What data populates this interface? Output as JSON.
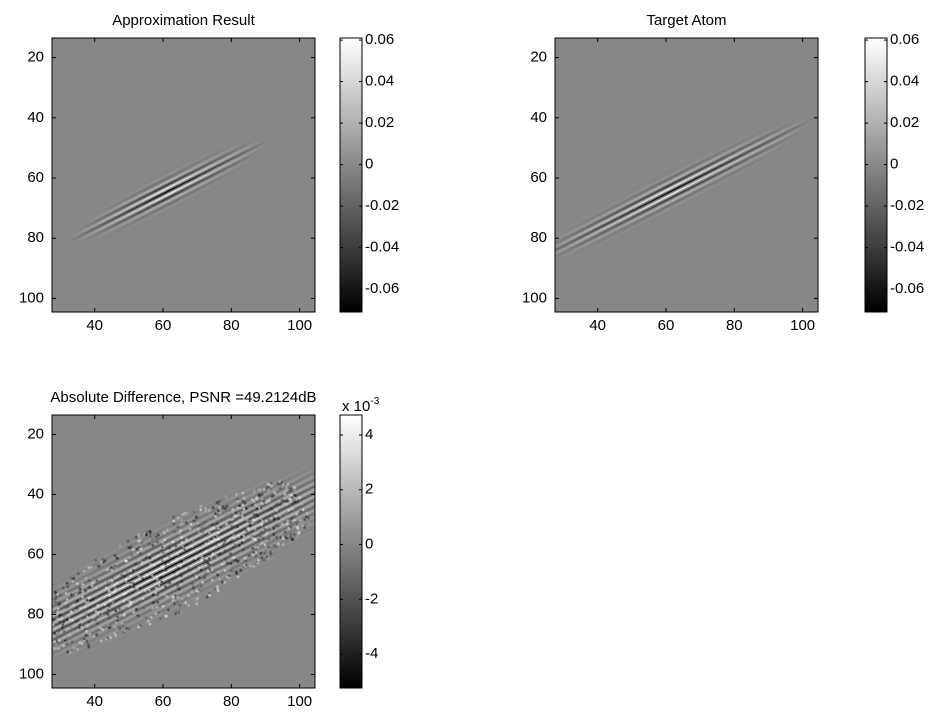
{
  "chart_data": [
    {
      "type": "image",
      "title": "Approximation Result",
      "colormap": "gray",
      "xlim": [
        27.5,
        104.5
      ],
      "ylim": [
        104.5,
        13.5
      ],
      "xticks": [
        40,
        60,
        80,
        100
      ],
      "yticks": [
        20,
        40,
        60,
        80,
        100
      ],
      "clim": [
        -0.071,
        0.061
      ],
      "cticks": [
        -0.06,
        -0.04,
        -0.02,
        0,
        0.02,
        0.04,
        0.06
      ]
    },
    {
      "type": "image",
      "title": "Target Atom",
      "colormap": "gray",
      "xlim": [
        27.5,
        104.5
      ],
      "ylim": [
        104.5,
        13.5
      ],
      "xticks": [
        40,
        60,
        80,
        100
      ],
      "yticks": [
        20,
        40,
        60,
        80,
        100
      ],
      "clim": [
        -0.071,
        0.061
      ],
      "cticks": [
        -0.06,
        -0.04,
        -0.02,
        0,
        0.02,
        0.04,
        0.06
      ]
    },
    {
      "type": "image",
      "title": "Absolute Difference, PSNR =49.2124dB",
      "colormap": "gray",
      "xlim": [
        27.5,
        104.5
      ],
      "ylim": [
        104.5,
        13.5
      ],
      "xticks": [
        40,
        60,
        80,
        100
      ],
      "yticks": [
        20,
        40,
        60,
        80,
        100
      ],
      "clim": [
        -5.24,
        4.73
      ],
      "cticks": [
        -4,
        -2,
        0,
        2,
        4
      ],
      "colorbar_scale": {
        "base_label": "x 10",
        "exponent": -3
      }
    }
  ]
}
